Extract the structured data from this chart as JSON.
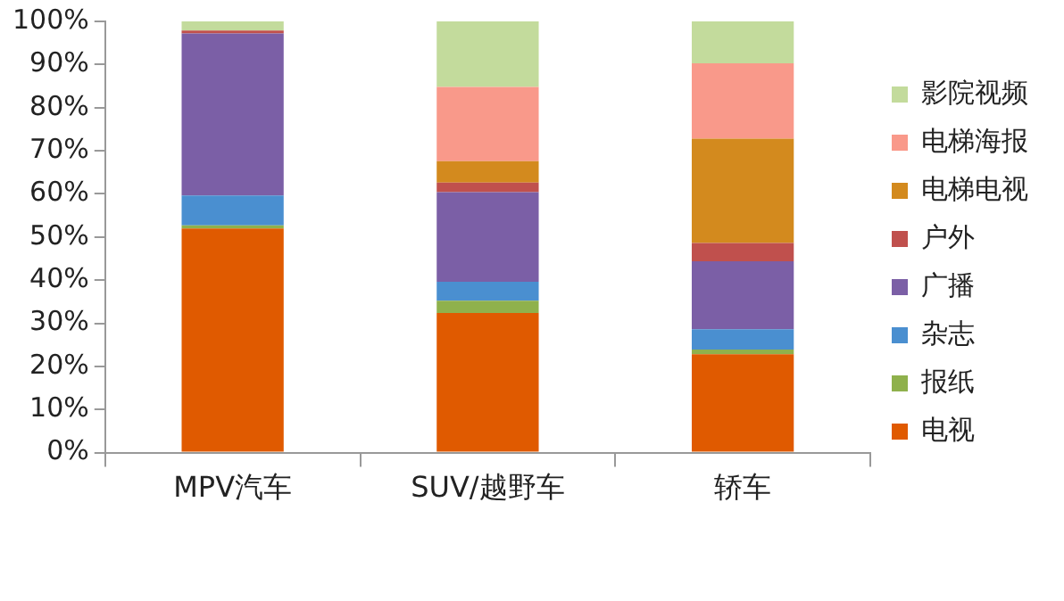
{
  "chart_data": {
    "type": "bar",
    "stacked": true,
    "categories": [
      "MPV汽车",
      "SUV/越野车",
      "轿车"
    ],
    "series": [
      {
        "name": "电视",
        "color": "#e05a00",
        "values": [
          52,
          32.4,
          22.8
        ]
      },
      {
        "name": "报纸",
        "color": "#8fb14c",
        "values": [
          0.7,
          2.8,
          1.1
        ]
      },
      {
        "name": "杂志",
        "color": "#4a8fd0",
        "values": [
          6.9,
          4.4,
          4.7
        ]
      },
      {
        "name": "广播",
        "color": "#7b5fa6",
        "values": [
          37.6,
          20.8,
          15.8
        ]
      },
      {
        "name": "户外",
        "color": "#c0504d",
        "values": [
          0.7,
          2.2,
          4.2
        ]
      },
      {
        "name": "电梯电视",
        "color": "#d38a1e",
        "values": [
          0,
          5,
          24.2
        ]
      },
      {
        "name": "电梯海报",
        "color": "#f9998a",
        "values": [
          0,
          17.2,
          17.5
        ]
      },
      {
        "name": "影院视频",
        "color": "#c3db9c",
        "values": [
          2.1,
          15.2,
          9.7
        ]
      }
    ],
    "ylim": [
      0,
      100
    ],
    "yticks": [
      {
        "value": 0,
        "label": "0%"
      },
      {
        "value": 10,
        "label": "10%"
      },
      {
        "value": 20,
        "label": "20%"
      },
      {
        "value": 30,
        "label": "30%"
      },
      {
        "value": 40,
        "label": "40%"
      },
      {
        "value": 50,
        "label": "50%"
      },
      {
        "value": 60,
        "label": "60%"
      },
      {
        "value": 70,
        "label": "70%"
      },
      {
        "value": 80,
        "label": "80%"
      },
      {
        "value": 90,
        "label": "90%"
      },
      {
        "value": 100,
        "label": "100%"
      }
    ],
    "grid": false,
    "legend": "right"
  }
}
